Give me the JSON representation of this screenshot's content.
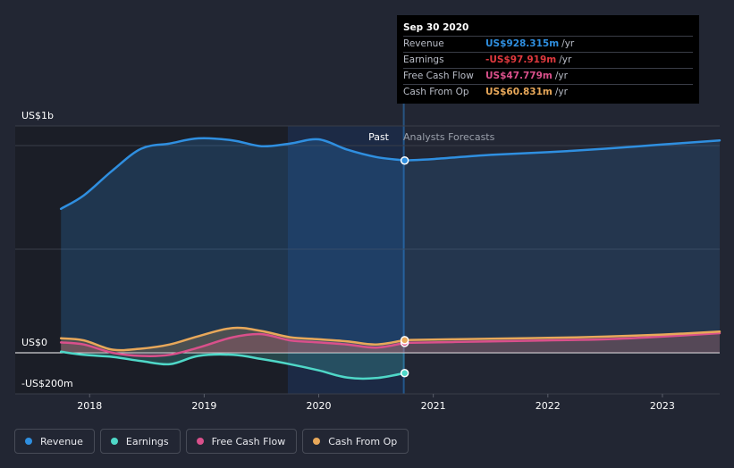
{
  "chart_data": {
    "type": "area",
    "y_axis": {
      "top_label": "US$1b",
      "zero_label": "US$0",
      "bottom_label": "-US$200m",
      "ylim": [
        -200,
        1000
      ]
    },
    "x_axis": {
      "ticks": [
        "2018",
        "2019",
        "2020",
        "2021",
        "2022",
        "2023"
      ],
      "xlim": [
        2017.6,
        2023.5
      ]
    },
    "split": {
      "x": 2020.75,
      "past_label": "Past",
      "forecast_label": "Analysts Forecasts"
    },
    "series": [
      {
        "name": "Revenue",
        "color": "#2f8fe0",
        "points": [
          [
            2017.75,
            695
          ],
          [
            2017.95,
            760
          ],
          [
            2018.2,
            880
          ],
          [
            2018.45,
            985
          ],
          [
            2018.7,
            1010
          ],
          [
            2018.95,
            1035
          ],
          [
            2019.25,
            1025
          ],
          [
            2019.5,
            997
          ],
          [
            2019.75,
            1010
          ],
          [
            2020.0,
            1030
          ],
          [
            2020.25,
            980
          ],
          [
            2020.5,
            945
          ],
          [
            2020.75,
            928
          ]
        ],
        "forecast": [
          [
            2020.75,
            928
          ],
          [
            2021.0,
            935
          ],
          [
            2021.5,
            955
          ],
          [
            2022.0,
            968
          ],
          [
            2022.5,
            985
          ],
          [
            2023.0,
            1005
          ],
          [
            2023.5,
            1025
          ]
        ]
      },
      {
        "name": "Earnings",
        "color": "#4fd8c8",
        "points": [
          [
            2017.75,
            5
          ],
          [
            2017.95,
            -10
          ],
          [
            2018.2,
            -20
          ],
          [
            2018.45,
            -40
          ],
          [
            2018.7,
            -55
          ],
          [
            2018.95,
            -15
          ],
          [
            2019.25,
            -10
          ],
          [
            2019.5,
            -30
          ],
          [
            2019.75,
            -55
          ],
          [
            2020.0,
            -85
          ],
          [
            2020.25,
            -120
          ],
          [
            2020.5,
            -122
          ],
          [
            2020.75,
            -98
          ]
        ],
        "forecast": []
      },
      {
        "name": "Free Cash Flow",
        "color": "#d9508b",
        "points": [
          [
            2017.75,
            50
          ],
          [
            2017.95,
            40
          ],
          [
            2018.2,
            0
          ],
          [
            2018.45,
            -15
          ],
          [
            2018.7,
            -10
          ],
          [
            2018.95,
            25
          ],
          [
            2019.25,
            75
          ],
          [
            2019.5,
            90
          ],
          [
            2019.75,
            60
          ],
          [
            2020.0,
            50
          ],
          [
            2020.25,
            40
          ],
          [
            2020.5,
            25
          ],
          [
            2020.75,
            48
          ]
        ],
        "forecast": [
          [
            2020.75,
            48
          ],
          [
            2021.5,
            55
          ],
          [
            2022.0,
            60
          ],
          [
            2022.5,
            65
          ],
          [
            2023.0,
            78
          ],
          [
            2023.5,
            95
          ]
        ]
      },
      {
        "name": "Cash From Op",
        "color": "#e8a85a",
        "points": [
          [
            2017.75,
            70
          ],
          [
            2017.95,
            60
          ],
          [
            2018.2,
            15
          ],
          [
            2018.45,
            20
          ],
          [
            2018.7,
            40
          ],
          [
            2018.95,
            80
          ],
          [
            2019.25,
            120
          ],
          [
            2019.5,
            105
          ],
          [
            2019.75,
            75
          ],
          [
            2020.0,
            65
          ],
          [
            2020.25,
            55
          ],
          [
            2020.5,
            40
          ],
          [
            2020.75,
            61
          ]
        ],
        "forecast": [
          [
            2020.75,
            61
          ],
          [
            2021.5,
            68
          ],
          [
            2022.0,
            72
          ],
          [
            2022.5,
            78
          ],
          [
            2023.0,
            88
          ],
          [
            2023.5,
            102
          ]
        ]
      }
    ]
  },
  "tooltip": {
    "date": "Sep 30 2020",
    "rows": [
      {
        "name": "Revenue",
        "value": "US$928.315m",
        "unit": "/yr",
        "color": "#2f8fe0"
      },
      {
        "name": "Earnings",
        "value": "-US$97.919m",
        "unit": "/yr",
        "color": "#e0393e"
      },
      {
        "name": "Free Cash Flow",
        "value": "US$47.779m",
        "unit": "/yr",
        "color": "#d9508b"
      },
      {
        "name": "Cash From Op",
        "value": "US$60.831m",
        "unit": "/yr",
        "color": "#e8a85a"
      }
    ]
  },
  "legend": [
    {
      "label": "Revenue",
      "color": "#2f8fe0"
    },
    {
      "label": "Earnings",
      "color": "#4fd8c8"
    },
    {
      "label": "Free Cash Flow",
      "color": "#d9508b"
    },
    {
      "label": "Cash From Op",
      "color": "#e8a85a"
    }
  ]
}
